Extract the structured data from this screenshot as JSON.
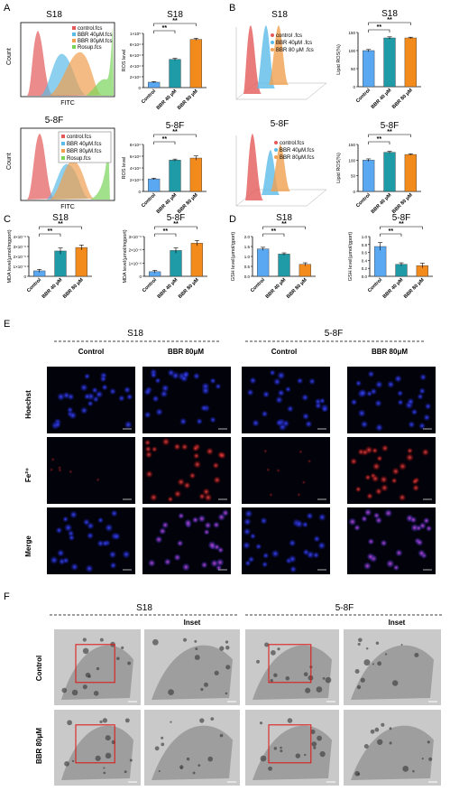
{
  "panels": {
    "A": "A",
    "B": "B",
    "C": "C",
    "D": "D",
    "E": "E",
    "F": "F"
  },
  "colors": {
    "control": "#5aa7f2",
    "bbr40": "#1f9aa7",
    "bbr80": "#f28a1c",
    "hist_control": "#e45a5a",
    "hist_40": "#5bbbe8",
    "hist_80": "#f0a050",
    "hist_rosup": "#7bd45a",
    "sig": "#000000",
    "fluor_blue": "#1a1fa8",
    "fluor_red": "#c8161a",
    "tem_bg": "#bdbdbd"
  },
  "flow_A": [
    {
      "title": "S18",
      "xlabel": "FITC",
      "ylabel": "Count",
      "legend": [
        "control.fcs",
        "BBR 40μM.fcs",
        "BBR 80μM.fcs",
        "Rosup.fcs"
      ]
    },
    {
      "title": "5-8F",
      "xlabel": "FITC",
      "ylabel": "Count",
      "legend": [
        "control.fcs",
        "BBR 40μM.fcs",
        "BBR 80μM.fcs",
        "Rosup.fcs"
      ]
    }
  ],
  "flow_B": [
    {
      "title": "S18",
      "legend": [
        "control .fcs",
        "BBR 40μM .fcs",
        "BBR 80 μM .fcs"
      ]
    },
    {
      "title": "5-8F",
      "legend": [
        "control.fcs",
        "BBR 40μM.fcs",
        "BBR 80μM.fcs"
      ]
    }
  ],
  "chart_data": [
    {
      "id": "A_S18_ros",
      "type": "bar",
      "title": "S18",
      "ylabel": "ROS level",
      "categories": [
        "Control",
        "BBR 40 μM",
        "BBR 80 μM"
      ],
      "values": [
        1.0,
        5.2,
        8.9
      ],
      "errors": [
        0.1,
        0.2,
        0.2
      ],
      "ylim": [
        0,
        10
      ],
      "yticks": [
        "0",
        "2×10⁴",
        "4×10⁴",
        "6×10⁴",
        "8×10⁴",
        "1×10⁵"
      ],
      "sig": [
        {
          "from": 0,
          "to": 1,
          "label": "**"
        },
        {
          "from": 0,
          "to": 2,
          "label": "**"
        }
      ]
    },
    {
      "id": "A_58F_ros",
      "type": "bar",
      "title": "5-8F",
      "ylabel": "ROS level",
      "categories": [
        "Control",
        "BBR 40 μM",
        "BBR 80 μM"
      ],
      "values": [
        2.4,
        6.0,
        6.4
      ],
      "errors": [
        0.15,
        0.2,
        0.4
      ],
      "ylim": [
        0,
        9
      ],
      "yticks": [
        "0",
        "2×10⁴",
        "4×10⁴",
        "6×10⁴",
        "8×10⁴"
      ],
      "sig": [
        {
          "from": 0,
          "to": 1,
          "label": "**"
        },
        {
          "from": 0,
          "to": 2,
          "label": "**"
        }
      ]
    },
    {
      "id": "B_S18_lipid",
      "type": "bar",
      "title": "S18",
      "ylabel": "Lipid ROS(%)",
      "categories": [
        "Control",
        "BBR 40 μM",
        "BBR 80 μM"
      ],
      "values": [
        100,
        135,
        135
      ],
      "errors": [
        3,
        3,
        2
      ],
      "ylim": [
        0,
        150
      ],
      "yticks": [
        "0",
        "50",
        "100",
        "150"
      ],
      "sig": [
        {
          "from": 0,
          "to": 1,
          "label": "**"
        },
        {
          "from": 0,
          "to": 2,
          "label": "**"
        }
      ]
    },
    {
      "id": "B_58F_lipid",
      "type": "bar",
      "title": "5-8F",
      "ylabel": "Lipid ROS(%)",
      "categories": [
        "Control",
        "BBR 40 μM",
        "BBR 80 μM"
      ],
      "values": [
        100,
        125,
        118
      ],
      "errors": [
        4,
        3,
        2
      ],
      "ylim": [
        0,
        150
      ],
      "yticks": [
        "0",
        "50",
        "100",
        "150"
      ],
      "sig": [
        {
          "from": 0,
          "to": 1,
          "label": "**"
        },
        {
          "from": 0,
          "to": 2,
          "label": "**"
        }
      ]
    },
    {
      "id": "C_S18_mda",
      "type": "bar",
      "title": "S18",
      "ylabel": "MDA level(μmol/mgport)",
      "categories": [
        "Control",
        "BBR 40 μM",
        "BBR 80 μM"
      ],
      "values": [
        0.55,
        2.55,
        2.9
      ],
      "errors": [
        0.15,
        0.3,
        0.25
      ],
      "ylim": [
        0,
        4
      ],
      "yticks": [
        "0",
        "1×10⁻⁶",
        "2×10⁻⁶",
        "3×10⁻⁶",
        "4×10⁻⁶"
      ],
      "sig": [
        {
          "from": 0,
          "to": 1,
          "label": "**"
        },
        {
          "from": 0,
          "to": 2,
          "label": "**"
        }
      ]
    },
    {
      "id": "C_58F_mda",
      "type": "bar",
      "title": "5-8F",
      "ylabel": "MDA level(μmol/mgport)",
      "categories": [
        "Control",
        "BBR 40 μM",
        "BBR 80 μM"
      ],
      "values": [
        0.35,
        1.95,
        2.5
      ],
      "errors": [
        0.1,
        0.2,
        0.2
      ],
      "ylim": [
        0,
        3
      ],
      "yticks": [
        "0",
        "1×10⁻⁶",
        "2×10⁻⁶",
        "3×10⁻⁶"
      ],
      "sig": [
        {
          "from": 0,
          "to": 1,
          "label": "**"
        },
        {
          "from": 0,
          "to": 2,
          "label": "**"
        }
      ]
    },
    {
      "id": "D_S18_gsh",
      "type": "bar",
      "title": "S18",
      "ylabel": "GSH level(μmol/gport)",
      "categories": [
        "Control",
        "BBR 40 μM",
        "BBR 80 μM"
      ],
      "values": [
        1.38,
        1.12,
        0.6
      ],
      "errors": [
        0.08,
        0.06,
        0.08
      ],
      "ylim": [
        0,
        2.0
      ],
      "yticks": [
        "0.0",
        "0.5",
        "1.0",
        "1.5",
        "2.0"
      ],
      "sig": [
        {
          "from": 0,
          "to": 1,
          "label": "**"
        },
        {
          "from": 0,
          "to": 2,
          "label": "**"
        }
      ]
    },
    {
      "id": "D_58F_gsh",
      "type": "bar",
      "title": "5-8F",
      "ylabel": "GSH level(μmol/gport)",
      "categories": [
        "Control",
        "BBR 40 μM",
        "BBR 80 μM"
      ],
      "values": [
        0.75,
        0.3,
        0.27
      ],
      "errors": [
        0.1,
        0.04,
        0.06
      ],
      "ylim": [
        0,
        1.0
      ],
      "yticks": [
        "0.0",
        "0.2",
        "0.4",
        "0.6",
        "0.8",
        "1.0"
      ],
      "sig": [
        {
          "from": 0,
          "to": 1,
          "label": "**"
        },
        {
          "from": 0,
          "to": 2,
          "label": "**"
        }
      ]
    }
  ],
  "panel_E": {
    "groups": [
      "S18",
      "5-8F"
    ],
    "columns": [
      "Control",
      "BBR 80μM",
      "Control",
      "BBR 80μM"
    ],
    "rows": [
      "Hoechst",
      "Fe²⁺",
      "Merge"
    ]
  },
  "panel_F": {
    "groups": [
      "S18",
      "5-8F"
    ],
    "columns": [
      "",
      "Inset",
      "",
      "Inset"
    ],
    "rows": [
      "Control",
      "BBR 80μM"
    ]
  }
}
